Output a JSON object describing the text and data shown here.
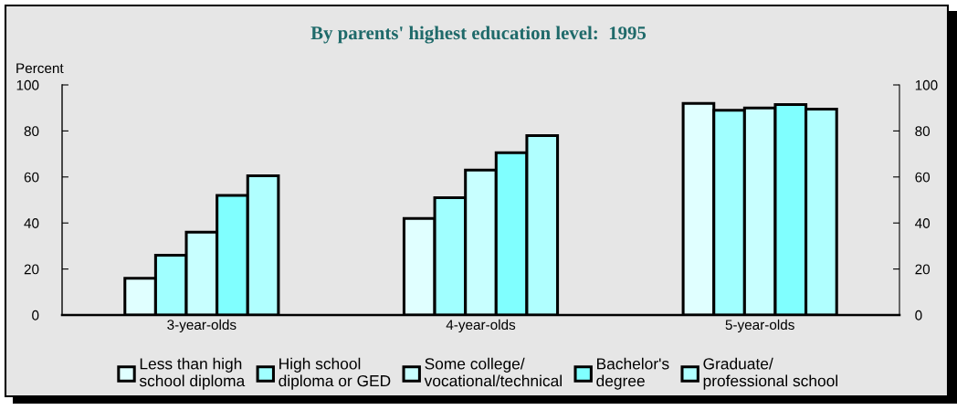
{
  "chart_data": {
    "type": "bar",
    "title": "By parents' highest education level:  1995",
    "ylabel": "Percent",
    "categories": [
      "3-year-olds",
      "4-year-olds",
      "5-year-olds"
    ],
    "series": [
      {
        "name": "Less than high\nschool diploma",
        "color": "#e0ffff",
        "values": [
          16,
          42,
          92
        ]
      },
      {
        "name": "High school\ndiploma or GED",
        "color": "#a0ffff",
        "values": [
          26,
          51,
          89
        ]
      },
      {
        "name": "Some college/\nvocational/technical",
        "color": "#c8ffff",
        "values": [
          36,
          63,
          90
        ]
      },
      {
        "name": "Bachelor's\ndegree",
        "color": "#80ffff",
        "values": [
          52,
          70.5,
          91.5
        ]
      },
      {
        "name": "Graduate/\nprofessional school",
        "color": "#b0ffff",
        "values": [
          60.5,
          78,
          89.5
        ]
      }
    ],
    "ylim": [
      0,
      100
    ],
    "yticks": [
      0,
      20,
      40,
      60,
      80,
      100
    ],
    "y2lim": [
      0,
      100
    ],
    "y2ticks": [
      0,
      20,
      40,
      60,
      80,
      100
    ],
    "grid": false,
    "legend": "bottom"
  }
}
